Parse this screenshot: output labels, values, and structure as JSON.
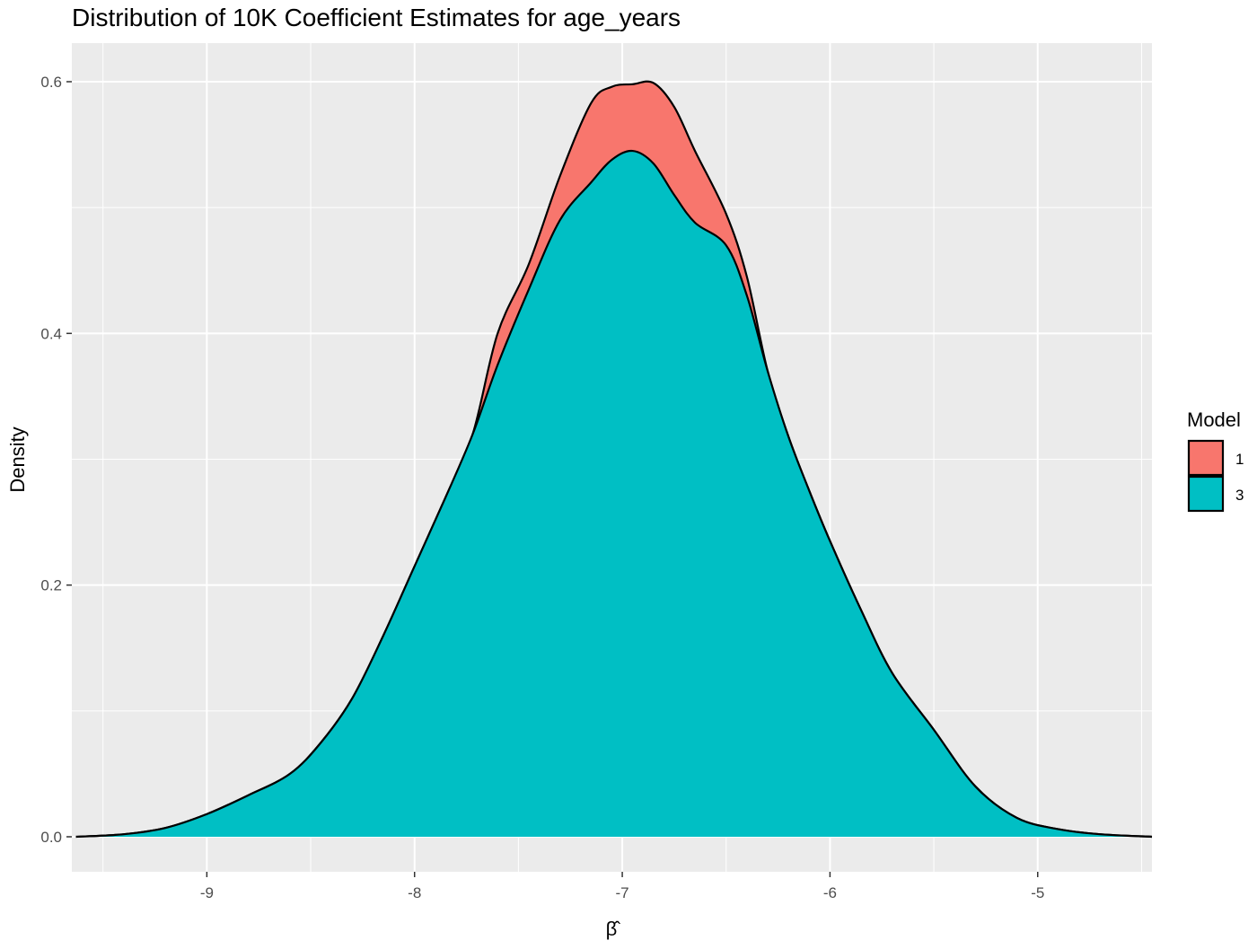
{
  "chart_data": {
    "type": "area",
    "title": "Distribution of 10K Coefficient Estimates for age_years",
    "xlabel": "β̂",
    "ylabel": "Density",
    "xlim": [
      -9.65,
      -4.45
    ],
    "ylim": [
      0,
      0.6
    ],
    "x_ticks": [
      -9,
      -8,
      -7,
      -6,
      -5
    ],
    "x_tick_labels": [
      "-9",
      "-8",
      "-7",
      "-6",
      "-5"
    ],
    "y_ticks": [
      0.0,
      0.2,
      0.4,
      0.6
    ],
    "y_tick_labels": [
      "0.0",
      "0.2",
      "0.4",
      "0.6"
    ],
    "grid": true,
    "legend": {
      "title": "Model",
      "placement": "right"
    },
    "series": [
      {
        "name": "1",
        "color": "#F8766D",
        "x": [
          -9.63,
          -9.4,
          -9.2,
          -9.0,
          -8.8,
          -8.6,
          -8.45,
          -8.3,
          -8.15,
          -8.0,
          -7.85,
          -7.72,
          -7.6,
          -7.45,
          -7.3,
          -7.15,
          -7.05,
          -6.95,
          -6.85,
          -6.75,
          -6.65,
          -6.5,
          -6.4,
          -6.3,
          -6.2,
          -6.1,
          -6.0,
          -5.85,
          -5.7,
          -5.5,
          -5.3,
          -5.1,
          -4.9,
          -4.7,
          -4.45
        ],
        "y": [
          0.0,
          0.002,
          0.007,
          0.018,
          0.033,
          0.05,
          0.075,
          0.11,
          0.16,
          0.215,
          0.27,
          0.32,
          0.4,
          0.455,
          0.525,
          0.583,
          0.596,
          0.598,
          0.599,
          0.58,
          0.545,
          0.495,
          0.445,
          0.37,
          0.318,
          0.275,
          0.235,
          0.18,
          0.13,
          0.085,
          0.04,
          0.015,
          0.006,
          0.002,
          0.0
        ]
      },
      {
        "name": "3",
        "color": "#00BFC4",
        "x": [
          -9.63,
          -9.4,
          -9.2,
          -9.0,
          -8.8,
          -8.6,
          -8.45,
          -8.3,
          -8.15,
          -8.0,
          -7.85,
          -7.72,
          -7.6,
          -7.45,
          -7.3,
          -7.15,
          -7.05,
          -6.95,
          -6.85,
          -6.75,
          -6.65,
          -6.5,
          -6.4,
          -6.3,
          -6.2,
          -6.1,
          -6.0,
          -5.85,
          -5.7,
          -5.5,
          -5.3,
          -5.1,
          -4.9,
          -4.7,
          -4.45
        ],
        "y": [
          0.0,
          0.002,
          0.007,
          0.018,
          0.033,
          0.05,
          0.075,
          0.11,
          0.16,
          0.215,
          0.27,
          0.32,
          0.375,
          0.435,
          0.49,
          0.52,
          0.538,
          0.545,
          0.535,
          0.51,
          0.488,
          0.47,
          0.43,
          0.37,
          0.318,
          0.275,
          0.235,
          0.18,
          0.13,
          0.085,
          0.04,
          0.015,
          0.006,
          0.002,
          0.0
        ]
      }
    ]
  }
}
